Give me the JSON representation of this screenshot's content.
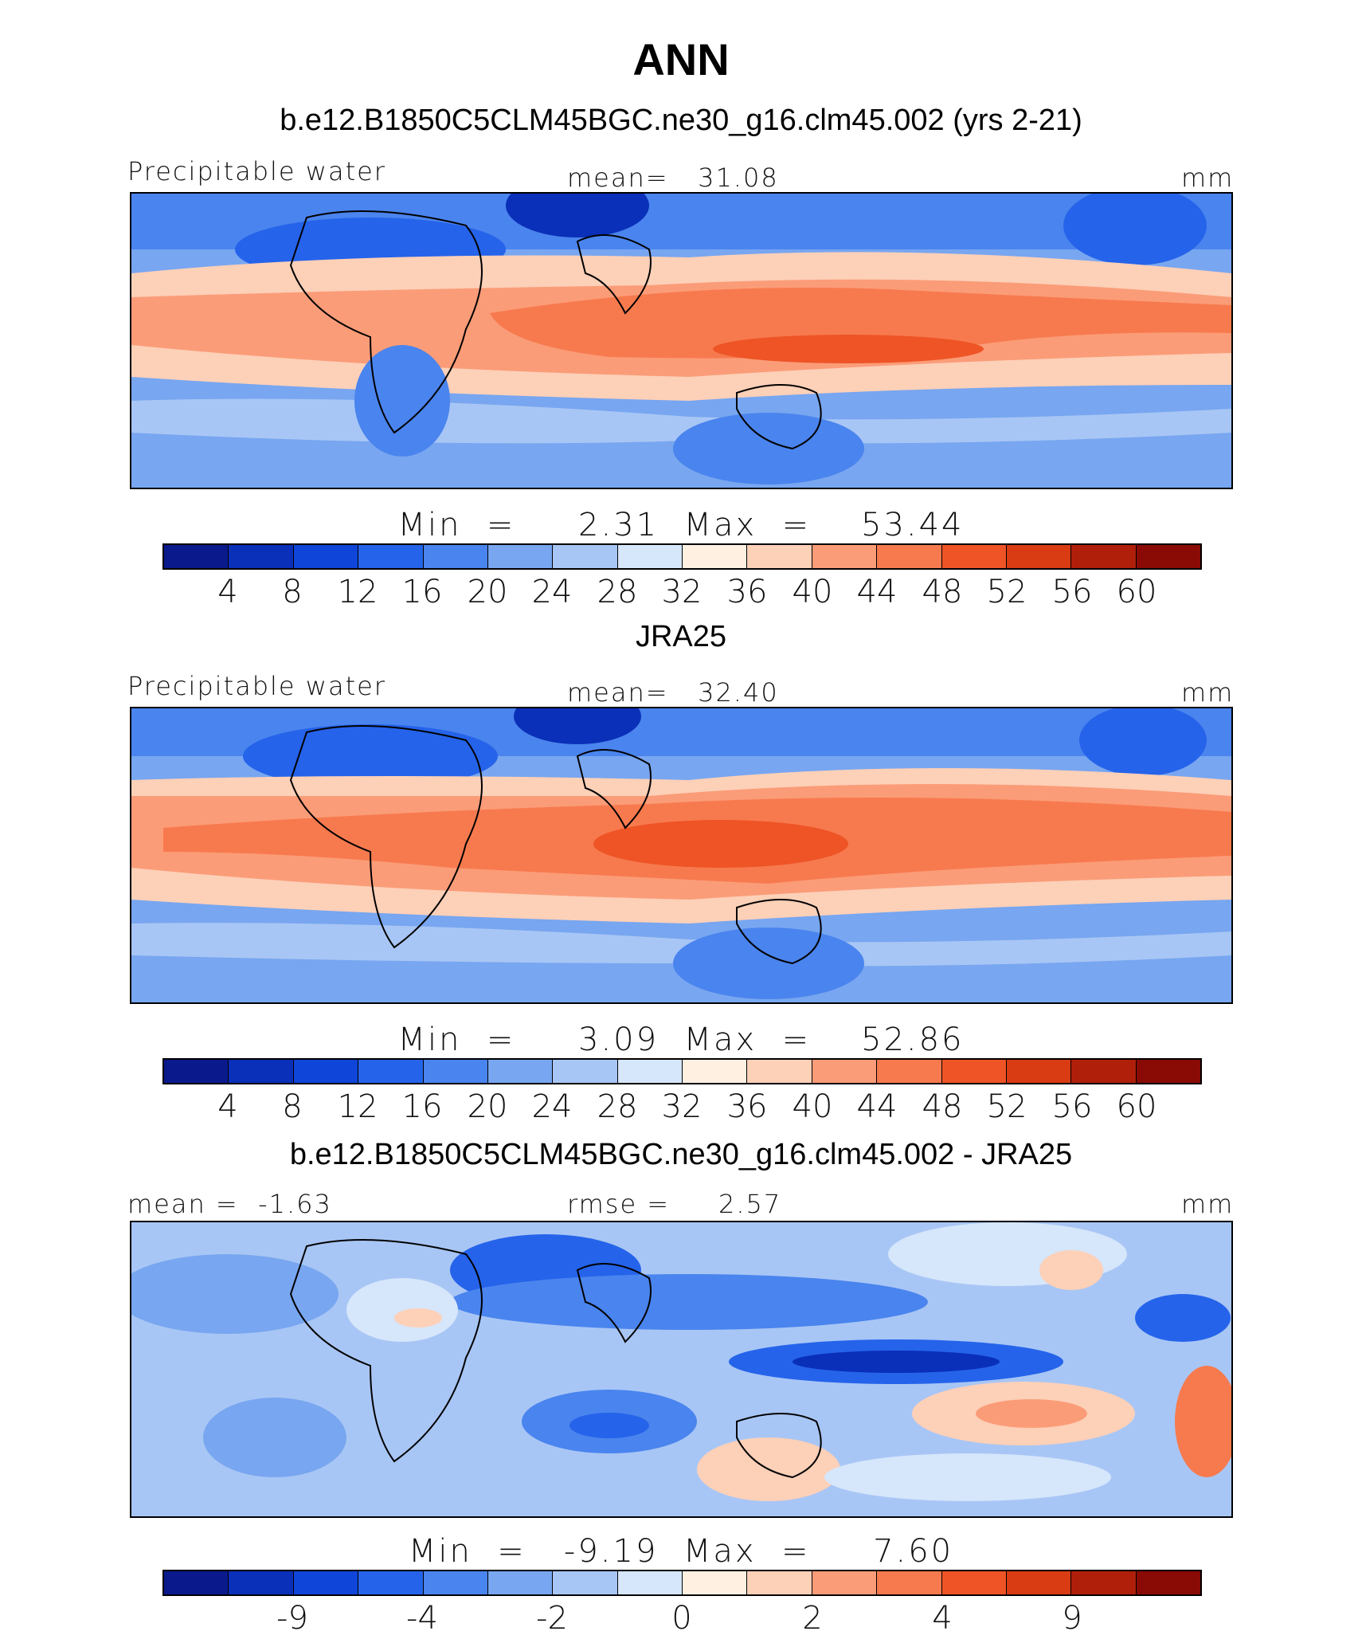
{
  "title": "ANN",
  "palette": [
    "#0a1a8c",
    "#0a2fb8",
    "#0f45d8",
    "#2563ea",
    "#4a84ee",
    "#78a6f0",
    "#a8c6f5",
    "#d6e6fb",
    "#fff0e2",
    "#fdd0b8",
    "#fb9c78",
    "#f77a4e",
    "#ee5426",
    "#d93b12",
    "#b01f0a",
    "#8a0a05"
  ],
  "panels": [
    {
      "title": "b.e12.B1850C5CLM45BGC.ne30_g16.clm45.002 (yrs 2-21)",
      "left_label": "Precipitable water",
      "center_label": "mean=   31.08",
      "right_label": "mm",
      "minmax": "Min  =     2.31  Max  =    53.44",
      "ticks": [
        "4",
        "8",
        "12",
        "16",
        "20",
        "24",
        "28",
        "32",
        "36",
        "40",
        "44",
        "48",
        "52",
        "56",
        "60"
      ]
    },
    {
      "title": "JRA25",
      "left_label": "Precipitable water",
      "center_label": "mean=   32.40",
      "right_label": "mm",
      "minmax": "Min  =     3.09  Max  =    52.86",
      "ticks": [
        "4",
        "8",
        "12",
        "16",
        "20",
        "24",
        "28",
        "32",
        "36",
        "40",
        "44",
        "48",
        "52",
        "56",
        "60"
      ]
    },
    {
      "title": "b.e12.B1850C5CLM45BGC.ne30_g16.clm45.002 - JRA25",
      "left_label": "mean =  -1.63",
      "center_label": "rmse =     2.57",
      "right_label": "mm",
      "minmax": "Min  =   -9.19  Max  =     7.60",
      "ticks": [
        "-9",
        "",
        "-4",
        "",
        "-2",
        "",
        "0",
        "",
        "2",
        "",
        "4",
        "",
        "9",
        ""
      ]
    }
  ]
}
